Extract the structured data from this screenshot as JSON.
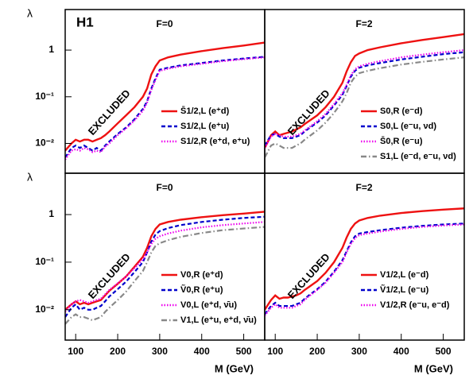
{
  "chart_data": [
    {
      "type": "line",
      "label": "H1",
      "panel_label": "F=0",
      "excluded": "EXCLUDED",
      "ylabel": "λ",
      "log_y": true,
      "xlim": [
        75,
        550
      ],
      "ylim": [
        0.0023,
        7.4
      ],
      "yticks": [
        {
          "value": 0.01,
          "label": "10⁻²"
        },
        {
          "value": 0.1,
          "label": "10⁻¹"
        },
        1
      ],
      "x": [
        75,
        90,
        100,
        110,
        120,
        130,
        140,
        150,
        160,
        170,
        180,
        200,
        220,
        240,
        260,
        270,
        280,
        290,
        300,
        320,
        350,
        400,
        450,
        500,
        550
      ],
      "series": [
        {
          "name": "S̄1/2,L (e⁺d)",
          "color": "#ee1111",
          "style": "solid",
          "values": [
            0.007,
            0.01,
            0.012,
            0.011,
            0.012,
            0.012,
            0.011,
            0.012,
            0.013,
            0.015,
            0.018,
            0.027,
            0.04,
            0.06,
            0.1,
            0.15,
            0.3,
            0.45,
            0.6,
            0.7,
            0.8,
            0.95,
            1.1,
            1.25,
            1.45
          ]
        },
        {
          "name": "S1/2,L (e⁺u)",
          "color": "#0000cc",
          "style": "dashed",
          "values": [
            0.005,
            0.008,
            0.009,
            0.008,
            0.009,
            0.008,
            0.007,
            0.008,
            0.007,
            0.009,
            0.011,
            0.016,
            0.022,
            0.033,
            0.055,
            0.08,
            0.15,
            0.25,
            0.38,
            0.42,
            0.47,
            0.53,
            0.6,
            0.66,
            0.72
          ]
        },
        {
          "name": "S1/2,R (e⁺d, e⁺u)",
          "color": "#ee00ee",
          "style": "dotted",
          "values": [
            0.0045,
            0.007,
            0.0075,
            0.007,
            0.008,
            0.0075,
            0.0065,
            0.007,
            0.0065,
            0.0085,
            0.01,
            0.015,
            0.021,
            0.031,
            0.05,
            0.075,
            0.14,
            0.23,
            0.36,
            0.4,
            0.45,
            0.51,
            0.58,
            0.64,
            0.7
          ]
        }
      ]
    },
    {
      "type": "line",
      "panel_label": "F=2",
      "excluded": "EXCLUDED",
      "log_y": true,
      "xlim": [
        75,
        550
      ],
      "ylim": [
        0.0023,
        7.4
      ],
      "x": [
        75,
        90,
        100,
        110,
        120,
        130,
        140,
        150,
        160,
        170,
        180,
        200,
        220,
        240,
        260,
        270,
        280,
        290,
        300,
        320,
        350,
        400,
        450,
        500,
        550
      ],
      "series": [
        {
          "name": "S0,R (e⁻d)",
          "color": "#ee1111",
          "style": "solid",
          "values": [
            0.008,
            0.015,
            0.018,
            0.015,
            0.016,
            0.017,
            0.018,
            0.02,
            0.022,
            0.026,
            0.03,
            0.04,
            0.06,
            0.1,
            0.2,
            0.35,
            0.55,
            0.75,
            0.85,
            1.0,
            1.15,
            1.4,
            1.65,
            1.9,
            2.2
          ]
        },
        {
          "name": "S0,L (e⁻u, νd)",
          "color": "#0000cc",
          "style": "dashed",
          "values": [
            0.009,
            0.015,
            0.016,
            0.014,
            0.013,
            0.013,
            0.013,
            0.014,
            0.015,
            0.018,
            0.021,
            0.028,
            0.04,
            0.065,
            0.11,
            0.17,
            0.27,
            0.36,
            0.42,
            0.47,
            0.53,
            0.63,
            0.72,
            0.82,
            0.9
          ]
        },
        {
          "name": "S̄0,R (e⁻u)",
          "color": "#ee00ee",
          "style": "dotted",
          "values": [
            0.008,
            0.014,
            0.016,
            0.015,
            0.014,
            0.014,
            0.014,
            0.015,
            0.016,
            0.019,
            0.022,
            0.03,
            0.043,
            0.07,
            0.12,
            0.18,
            0.29,
            0.39,
            0.45,
            0.51,
            0.58,
            0.7,
            0.8,
            0.9,
            1.0
          ]
        },
        {
          "name": "S1,L (e⁻d, e⁻u, νd)",
          "color": "#888888",
          "style": "dashdot",
          "values": [
            0.005,
            0.009,
            0.01,
            0.009,
            0.008,
            0.008,
            0.008,
            0.009,
            0.01,
            0.012,
            0.014,
            0.019,
            0.028,
            0.045,
            0.08,
            0.12,
            0.2,
            0.27,
            0.32,
            0.36,
            0.41,
            0.49,
            0.56,
            0.63,
            0.7
          ]
        }
      ]
    },
    {
      "type": "line",
      "panel_label": "F=0",
      "excluded": "EXCLUDED",
      "ylabel": "λ",
      "xlabel": "M (GeV)",
      "log_y": true,
      "xlim": [
        75,
        550
      ],
      "ylim": [
        0.0023,
        7.4
      ],
      "xticks": [
        100,
        200,
        300,
        400,
        500
      ],
      "yticks": [
        {
          "value": 0.01,
          "label": "10⁻²"
        },
        {
          "value": 0.1,
          "label": "10⁻¹"
        },
        1
      ],
      "x": [
        75,
        90,
        100,
        110,
        120,
        130,
        140,
        150,
        160,
        170,
        180,
        200,
        220,
        240,
        260,
        270,
        280,
        290,
        300,
        320,
        350,
        400,
        450,
        500,
        550
      ],
      "series": [
        {
          "name": "V0,R (e⁺d)",
          "color": "#ee1111",
          "style": "solid",
          "values": [
            0.01,
            0.013,
            0.015,
            0.013,
            0.014,
            0.013,
            0.014,
            0.015,
            0.016,
            0.02,
            0.025,
            0.035,
            0.05,
            0.08,
            0.13,
            0.2,
            0.35,
            0.5,
            0.62,
            0.7,
            0.78,
            0.88,
            0.97,
            1.05,
            1.15
          ]
        },
        {
          "name": "Ṽ0,R (e⁺u)",
          "color": "#0000cc",
          "style": "dashed",
          "values": [
            0.007,
            0.011,
            0.013,
            0.01,
            0.011,
            0.01,
            0.01,
            0.011,
            0.012,
            0.015,
            0.019,
            0.027,
            0.039,
            0.062,
            0.1,
            0.16,
            0.27,
            0.38,
            0.45,
            0.52,
            0.6,
            0.7,
            0.78,
            0.85,
            0.9
          ]
        },
        {
          "name": "V0,L (e⁺d, ν̄u)",
          "color": "#ee00ee",
          "style": "dotted",
          "values": [
            0.009,
            0.013,
            0.015,
            0.016,
            0.015,
            0.014,
            0.015,
            0.016,
            0.017,
            0.021,
            0.026,
            0.036,
            0.05,
            0.075,
            0.115,
            0.16,
            0.24,
            0.31,
            0.35,
            0.4,
            0.46,
            0.54,
            0.6,
            0.65,
            0.7
          ]
        },
        {
          "name": "V1,L (e⁺u, e⁺d, ν̄u)",
          "color": "#888888",
          "style": "dashdot",
          "values": [
            0.005,
            0.007,
            0.008,
            0.007,
            0.007,
            0.0065,
            0.006,
            0.0065,
            0.007,
            0.009,
            0.011,
            0.016,
            0.024,
            0.04,
            0.065,
            0.1,
            0.16,
            0.22,
            0.25,
            0.29,
            0.34,
            0.41,
            0.47,
            0.51,
            0.55
          ]
        }
      ]
    },
    {
      "type": "line",
      "panel_label": "F=2",
      "excluded": "EXCLUDED",
      "xlabel": "M (GeV)",
      "log_y": true,
      "xlim": [
        75,
        550
      ],
      "ylim": [
        0.0023,
        7.4
      ],
      "xticks": [
        100,
        200,
        300,
        400,
        500
      ],
      "x": [
        75,
        90,
        100,
        110,
        120,
        130,
        140,
        150,
        160,
        170,
        180,
        200,
        220,
        240,
        260,
        270,
        280,
        290,
        300,
        320,
        350,
        400,
        450,
        500,
        550
      ],
      "series": [
        {
          "name": "V1/2,L (e⁻d)",
          "color": "#ee1111",
          "style": "solid",
          "values": [
            0.01,
            0.016,
            0.02,
            0.017,
            0.018,
            0.018,
            0.019,
            0.02,
            0.022,
            0.026,
            0.03,
            0.04,
            0.06,
            0.1,
            0.2,
            0.33,
            0.5,
            0.65,
            0.75,
            0.85,
            0.95,
            1.08,
            1.18,
            1.27,
            1.35
          ]
        },
        {
          "name": "Ṽ1/2,L (e⁻u)",
          "color": "#0000cc",
          "style": "dashed",
          "values": [
            0.008,
            0.012,
            0.014,
            0.012,
            0.012,
            0.012,
            0.012,
            0.013,
            0.014,
            0.017,
            0.02,
            0.027,
            0.039,
            0.063,
            0.11,
            0.17,
            0.26,
            0.35,
            0.4,
            0.43,
            0.47,
            0.53,
            0.58,
            0.62,
            0.65
          ]
        },
        {
          "name": "V1/2,R (e⁻u, e⁻d)",
          "color": "#ee00ee",
          "style": "dotted",
          "values": [
            0.0075,
            0.011,
            0.013,
            0.011,
            0.011,
            0.011,
            0.011,
            0.012,
            0.013,
            0.016,
            0.019,
            0.026,
            0.037,
            0.06,
            0.1,
            0.16,
            0.24,
            0.32,
            0.37,
            0.4,
            0.44,
            0.5,
            0.55,
            0.59,
            0.62
          ]
        }
      ]
    }
  ]
}
